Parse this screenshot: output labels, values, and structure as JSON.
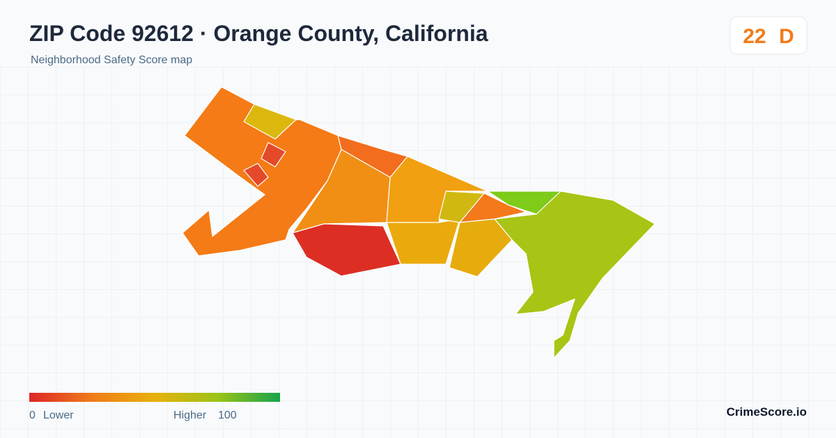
{
  "header": {
    "title": "ZIP Code 92612 · Orange County, California",
    "subtitle": "Neighborhood Safety Score map"
  },
  "badge": {
    "score": 22,
    "grade": "D"
  },
  "legend": {
    "min": 0,
    "min_label": "Lower",
    "max_label": "Higher",
    "max": 100
  },
  "brand": "CrimeScore.io"
}
